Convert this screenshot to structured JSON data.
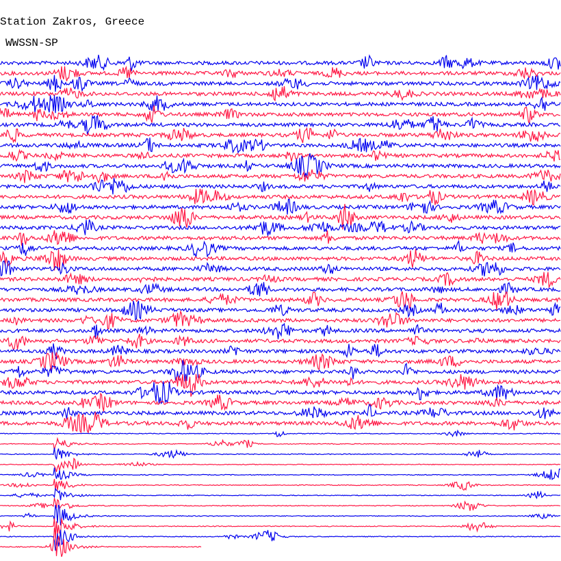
{
  "header": {
    "title": "Station Zakros, Greece",
    "subtitle": "WWSSN-SP"
  }
}
